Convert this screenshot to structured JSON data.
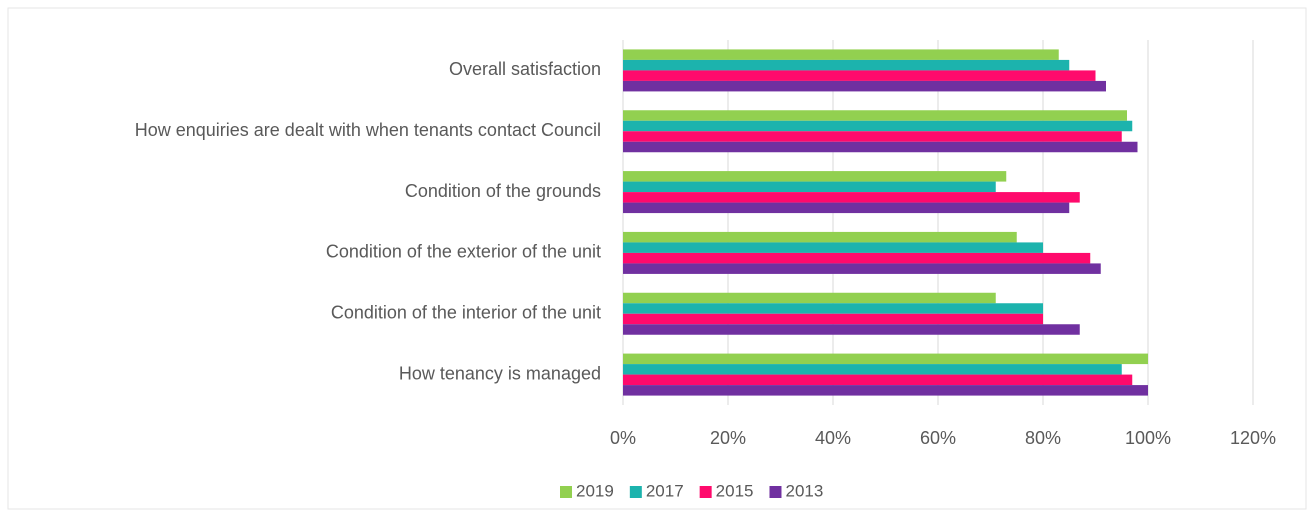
{
  "chart_data": {
    "type": "bar",
    "orientation": "horizontal",
    "categories": [
      "Overall satisfaction",
      "How enquiries are dealt with when tenants contact Council",
      "Condition of the grounds",
      "Condition of the exterior of the unit",
      "Condition of the interior of the unit",
      "How tenancy is managed"
    ],
    "series": [
      {
        "name": "2019",
        "color": "#92d050",
        "values": [
          83,
          96,
          73,
          75,
          71,
          100
        ]
      },
      {
        "name": "2017",
        "color": "#1cb3ad",
        "values": [
          85,
          97,
          71,
          80,
          80,
          95
        ]
      },
      {
        "name": "2015",
        "color": "#ff0a6c",
        "values": [
          90,
          95,
          87,
          89,
          80,
          97
        ]
      },
      {
        "name": "2013",
        "color": "#7030a0",
        "values": [
          92,
          98,
          85,
          91,
          87,
          100
        ]
      }
    ],
    "xlim": [
      0,
      120
    ],
    "xticks": [
      {
        "value": 0,
        "label": "0%"
      },
      {
        "value": 20,
        "label": "20%"
      },
      {
        "value": 40,
        "label": "40%"
      },
      {
        "value": 60,
        "label": "60%"
      },
      {
        "value": 80,
        "label": "80%"
      },
      {
        "value": 100,
        "label": "100%"
      },
      {
        "value": 120,
        "label": "120%"
      }
    ],
    "grid": true,
    "legend": "bottom"
  }
}
